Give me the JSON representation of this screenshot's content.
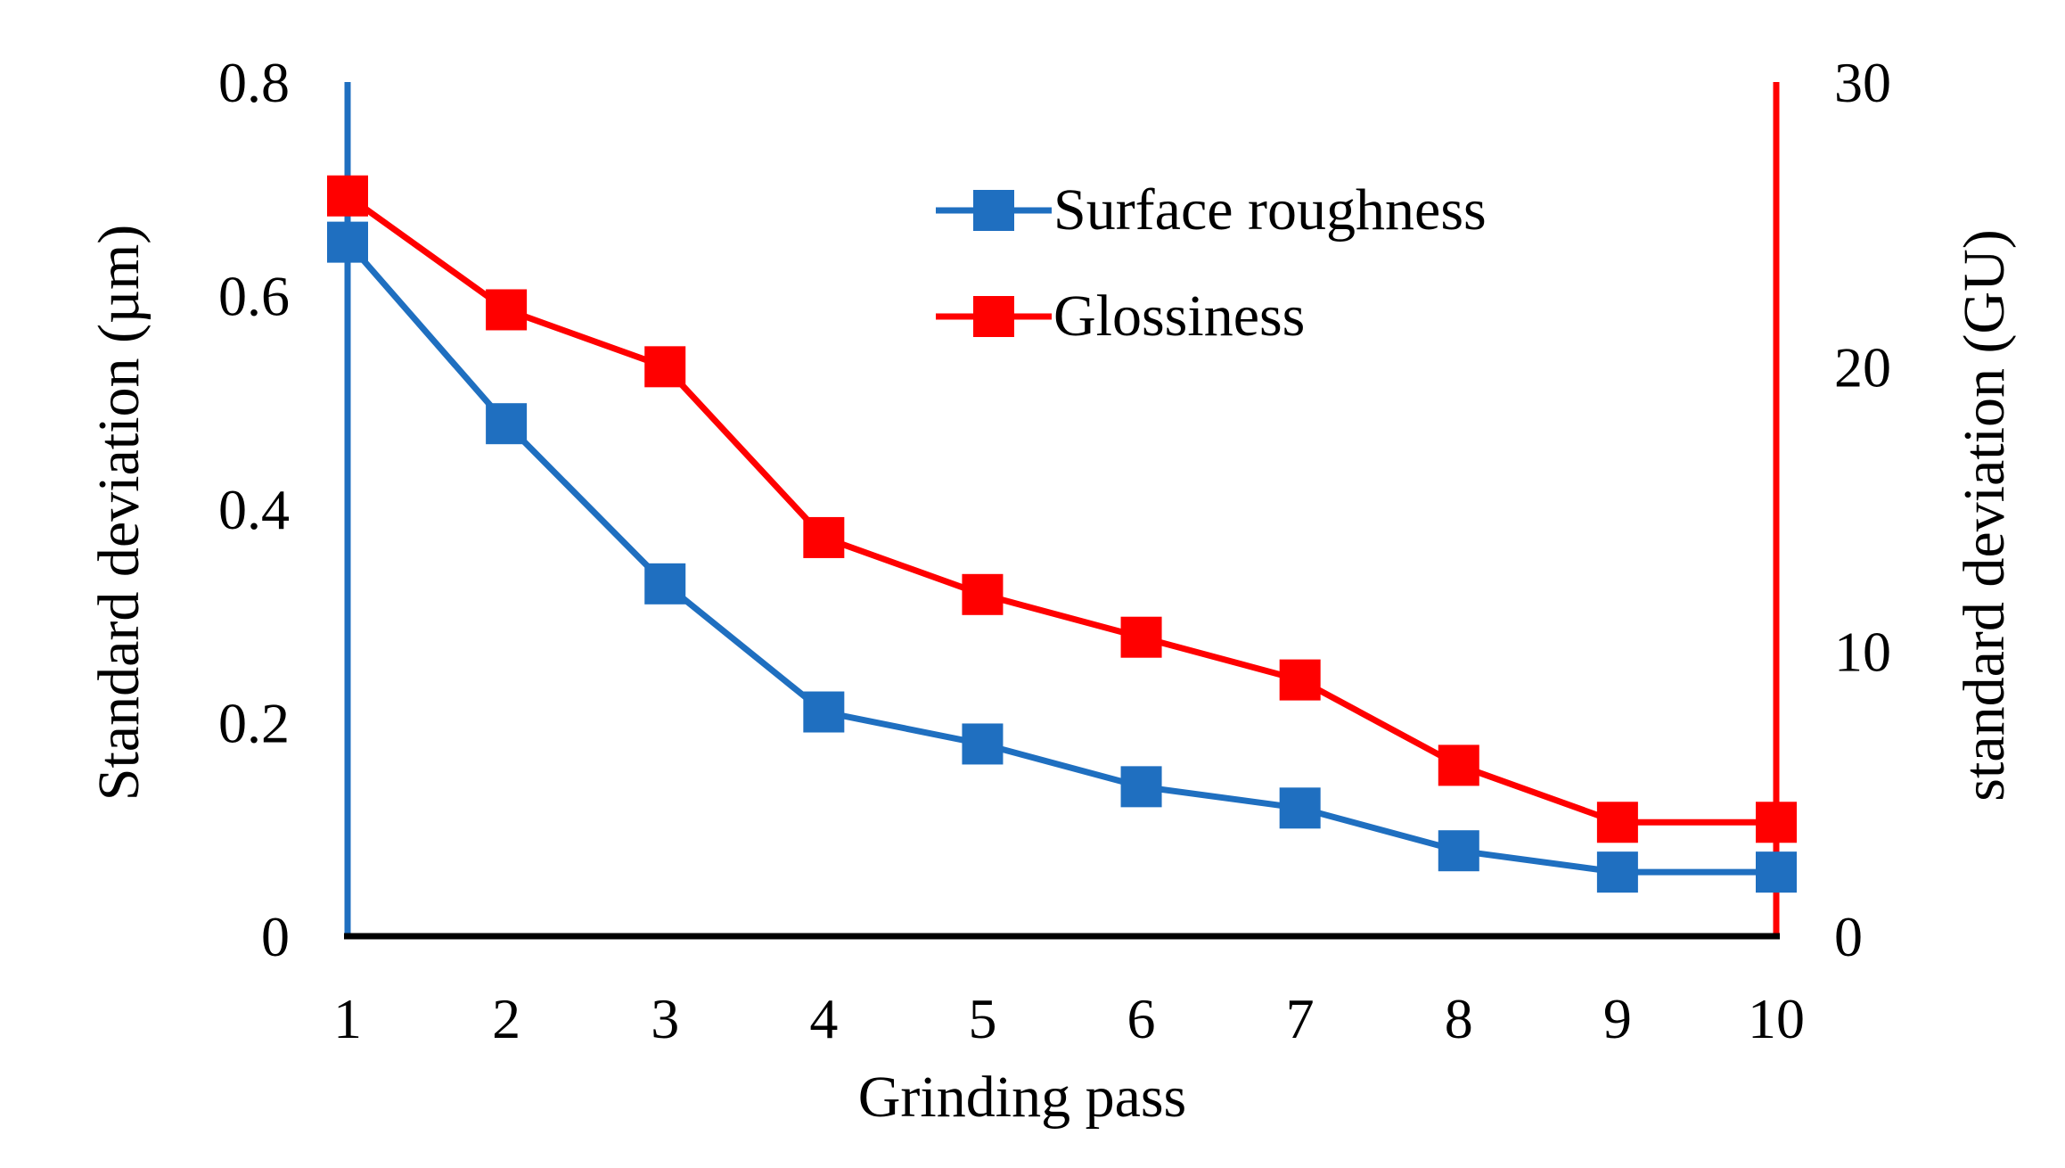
{
  "chart_data": {
    "type": "line",
    "title": "",
    "xlabel": "Grinding pass",
    "ylabel_left": "Standard deviation (µm)",
    "ylabel_right": "standard deviation (GU)",
    "x": [
      1,
      2,
      3,
      4,
      5,
      6,
      7,
      8,
      9,
      10
    ],
    "x_tick_labels": [
      "1",
      "2",
      "3",
      "4",
      "5",
      "6",
      "7",
      "8",
      "9",
      "10"
    ],
    "ylim_left": [
      0,
      0.8
    ],
    "ylim_right": [
      0,
      30
    ],
    "y_ticks_left": [
      "0",
      "0.2",
      "0.4",
      "0.6",
      "0.8"
    ],
    "y_ticks_right": [
      "0",
      "10",
      "20",
      "30"
    ],
    "grid": false,
    "legend_position": "top-center",
    "series": [
      {
        "name": "Surface roughness",
        "axis": "left",
        "color": "#1f6fc0",
        "marker": "square",
        "values": [
          0.65,
          0.48,
          0.33,
          0.21,
          0.18,
          0.14,
          0.12,
          0.08,
          0.06,
          0.06
        ]
      },
      {
        "name": "Glossiness",
        "axis": "right",
        "color": "#ff0000",
        "marker": "square",
        "values": [
          26,
          22,
          20,
          14,
          12,
          10.5,
          9,
          6,
          4,
          4
        ]
      }
    ]
  }
}
